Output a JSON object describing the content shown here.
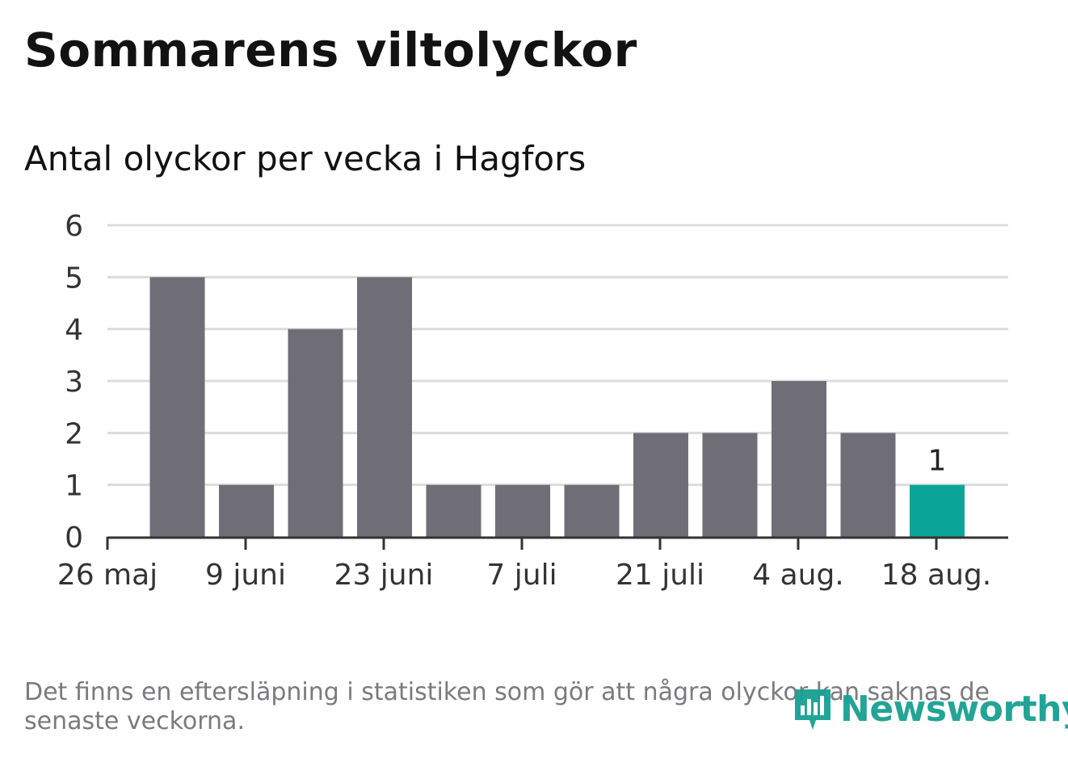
{
  "header": {
    "title": "Sommarens viltolyckor",
    "subtitle": "Antal olyckor per vecka i Hagfors"
  },
  "footnote": "Det finns en eftersläpning i statistiken som gör att några olyckor kan saknas de senaste veckorna.",
  "brand": {
    "name": "Newsworthy",
    "icon": "newsworthy-logo-icon",
    "color": "#18a091"
  },
  "chart_data": {
    "type": "bar",
    "title": "Antal olyckor per vecka i Hagfors",
    "xlabel": "",
    "ylabel": "",
    "ylim": [
      0,
      6
    ],
    "yticks": [
      "0",
      "1",
      "2",
      "3",
      "4",
      "5",
      "6"
    ],
    "xticks": [
      "26 maj",
      "9 juni",
      "23 juni",
      "7 juli",
      "21 juli",
      "4 aug.",
      "18 aug."
    ],
    "categories": [
      "2019-06-02",
      "2019-06-09",
      "2019-06-16",
      "2019-06-23",
      "2019-06-30",
      "2019-07-07",
      "2019-07-14",
      "2019-07-21",
      "2019-07-28",
      "2019-08-04",
      "2019-08-11",
      "2019-08-18"
    ],
    "values": [
      5,
      1,
      4,
      5,
      1,
      1,
      1,
      2,
      2,
      3,
      2,
      1
    ],
    "highlight_index": 11,
    "highlight_label": "1",
    "grid": true,
    "colors": {
      "bar": "#6f6e76",
      "highlight": "#0aa597",
      "grid": "#dcdcdc",
      "axis": "#333333"
    }
  }
}
